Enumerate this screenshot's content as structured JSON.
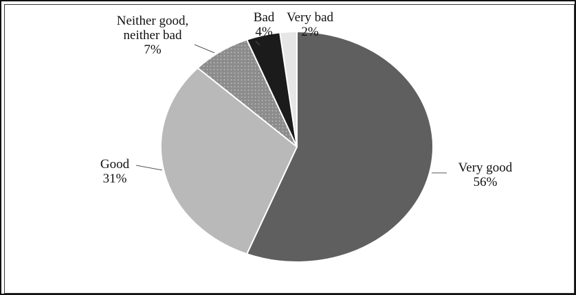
{
  "chart_data": {
    "type": "pie",
    "title": "",
    "start_angle_deg": 0,
    "direction": "clockwise",
    "slices": [
      {
        "name": "Very good",
        "value": 56,
        "label_lines": [
          "Very good",
          "56%"
        ],
        "color": "#5f5f5f",
        "pattern": "none"
      },
      {
        "name": "Good",
        "value": 31,
        "label_lines": [
          "Good",
          "31%"
        ],
        "color": "#b9b9b9",
        "pattern": "none"
      },
      {
        "name": "Neither good, neither bad",
        "value": 7,
        "label_lines": [
          "Neither good,",
          "neither bad",
          "7%"
        ],
        "color": "#8c8c8c",
        "pattern": "dots"
      },
      {
        "name": "Bad",
        "value": 4,
        "label_lines": [
          "Bad",
          "4%"
        ],
        "color": "#1b1b1b",
        "pattern": "none"
      },
      {
        "name": "Very bad",
        "value": 2,
        "label_lines": [
          "Very bad",
          "2%"
        ],
        "color": "#e6e6e6",
        "pattern": "none"
      }
    ],
    "legend": "none",
    "data_labels": "outside with leader lines"
  }
}
